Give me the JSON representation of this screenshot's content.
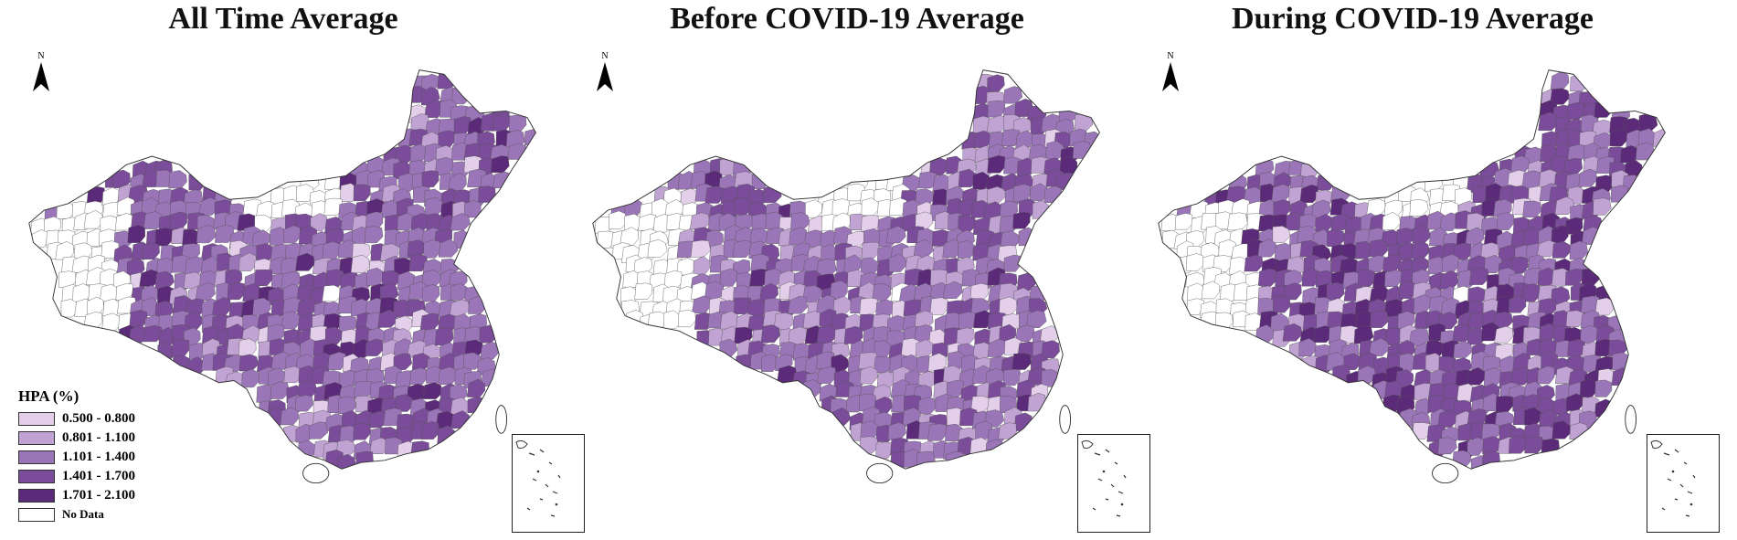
{
  "panels": [
    {
      "title": "All Time Average",
      "palette": [
        "#e3cfea",
        "#c0a3d3",
        "#9a75b8",
        "#7a4c9a",
        "#5b2a78",
        "#ffffff"
      ],
      "seed": 7,
      "weights": [
        0.04,
        0.1,
        0.44,
        0.34,
        0.08
      ]
    },
    {
      "title": "Before COVID-19 Average",
      "palette": [
        "#e3cfea",
        "#c0a3d3",
        "#9a75b8",
        "#7a4c9a",
        "#5b2a78",
        "#ffffff"
      ],
      "seed": 19,
      "weights": [
        0.06,
        0.22,
        0.44,
        0.22,
        0.06
      ]
    },
    {
      "title": "During COVID-19 Average",
      "palette": [
        "#e3cfea",
        "#c0a3d3",
        "#9a75b8",
        "#7a4c9a",
        "#5b2a78",
        "#ffffff"
      ],
      "seed": 33,
      "weights": [
        0.05,
        0.12,
        0.3,
        0.38,
        0.15
      ]
    }
  ],
  "north_label": "N",
  "legend": {
    "title": "HPA (%)",
    "classes": [
      {
        "label": "0.500 - 0.800",
        "color": "#e3cfea"
      },
      {
        "label": "0.801 - 1.100",
        "color": "#c0a3d3"
      },
      {
        "label": "1.101 - 1.400",
        "color": "#9a75b8"
      },
      {
        "label": "1.401 - 1.700",
        "color": "#7a4c9a"
      },
      {
        "label": "1.701 - 2.100",
        "color": "#5b2a78"
      },
      {
        "label": "No Data",
        "color": "#ffffff"
      }
    ]
  }
}
